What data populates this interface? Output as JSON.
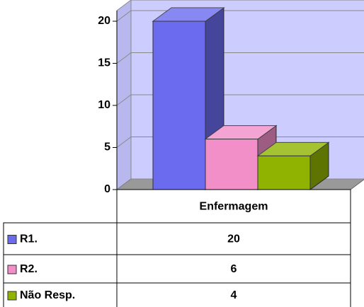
{
  "chart_data": {
    "type": "bar3d",
    "categories": [
      "Enfermagem"
    ],
    "series": [
      {
        "name": "R1.",
        "color": "#6b6bef",
        "values": [
          20
        ]
      },
      {
        "name": "R2.",
        "color": "#f28ec8",
        "values": [
          6
        ]
      },
      {
        "name": "Não Resp.",
        "color": "#8fb300",
        "values": [
          4
        ]
      }
    ],
    "ylim": [
      0,
      20
    ],
    "yticks": [
      0,
      5,
      10,
      15,
      20
    ],
    "grid": true
  }
}
